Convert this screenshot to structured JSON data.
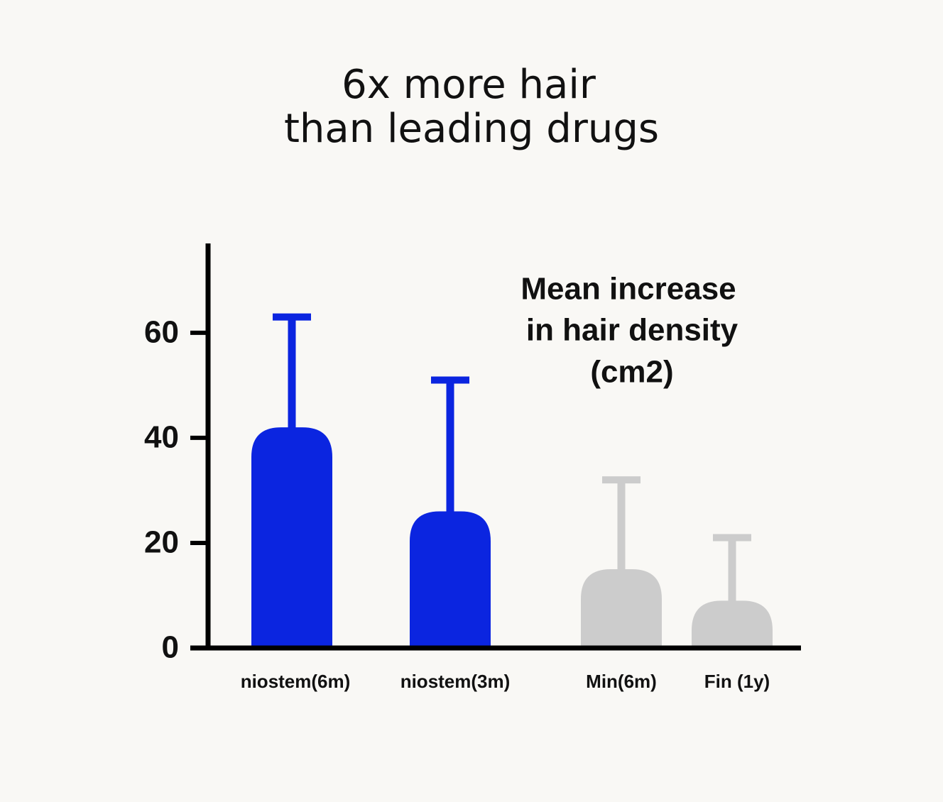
{
  "chart_data": {
    "type": "bar",
    "title": [
      "6x more hair",
      "than leading drugs"
    ],
    "annotation": [
      "Mean increase",
      "in hair density",
      "(cm2)"
    ],
    "categories": [
      "niostem(6m)",
      "niostem(3m)",
      "Min(6m)",
      "Fin (1y)"
    ],
    "values": [
      42,
      26,
      15,
      9
    ],
    "errors": [
      21,
      25,
      17,
      12
    ],
    "colors": [
      "#0b25e0",
      "#0b25e0",
      "#cccccc",
      "#cccccc"
    ],
    "ylim": [
      0,
      77
    ],
    "yticks": [
      0,
      20,
      40,
      60
    ],
    "grid": false
  }
}
